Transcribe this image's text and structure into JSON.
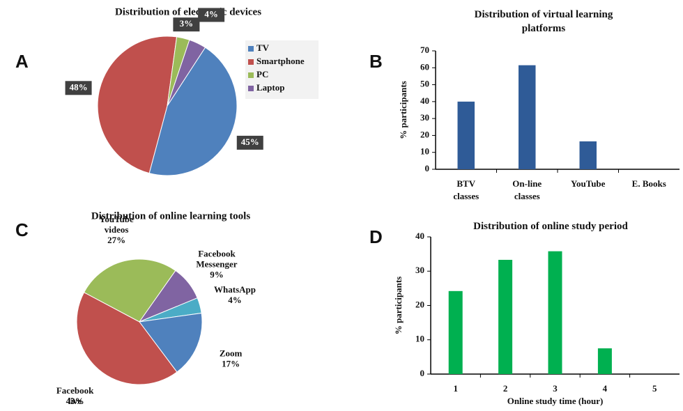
{
  "chart_data": [
    {
      "panel": "A",
      "type": "pie",
      "title": "Distribution of electronic devices",
      "categories": [
        "TV",
        "Smartphone",
        "PC",
        "Laptop"
      ],
      "values": [
        45,
        48,
        3,
        4
      ],
      "value_labels": [
        "45%",
        "48%",
        "3%",
        "4%"
      ],
      "colors": [
        "#4f81bd",
        "#c0504d",
        "#9bbb59",
        "#8064a2"
      ],
      "legend": "right"
    },
    {
      "panel": "B",
      "type": "bar",
      "title": "Distribution of virtual learning platforms",
      "ylabel": "% participants",
      "categories": [
        "BTV classes",
        "On-line classes",
        "YouTube",
        "E. Books"
      ],
      "values": [
        40,
        61.5,
        16.5,
        0
      ],
      "color": "#2f5b97",
      "ylim": [
        0,
        70
      ],
      "yticks": [
        0,
        10,
        20,
        30,
        40,
        50,
        60,
        70
      ]
    },
    {
      "panel": "C",
      "type": "pie",
      "title": "Distribution of online learning tools",
      "categories": [
        "YouTube videos",
        "Facebook Messenger",
        "WhatsApp",
        "Zoom",
        "Facebook live"
      ],
      "values": [
        27,
        9,
        4,
        17,
        43
      ],
      "value_labels": [
        "27%",
        "9%",
        "4%",
        "17%",
        "43%"
      ],
      "colors": [
        "#9bbb59",
        "#8064a2",
        "#4bacc6",
        "#4f81bd",
        "#c0504d"
      ]
    },
    {
      "panel": "D",
      "type": "bar",
      "title": "Distribution of online study period",
      "xlabel": "Online study time (hour)",
      "ylabel": "% participants",
      "categories": [
        "1",
        "2",
        "3",
        "4",
        "5"
      ],
      "values": [
        24.2,
        33.3,
        35.8,
        7.5,
        0
      ],
      "color": "#00b050",
      "ylim": [
        0,
        40
      ],
      "yticks": [
        0,
        10,
        20,
        30,
        40
      ]
    }
  ]
}
